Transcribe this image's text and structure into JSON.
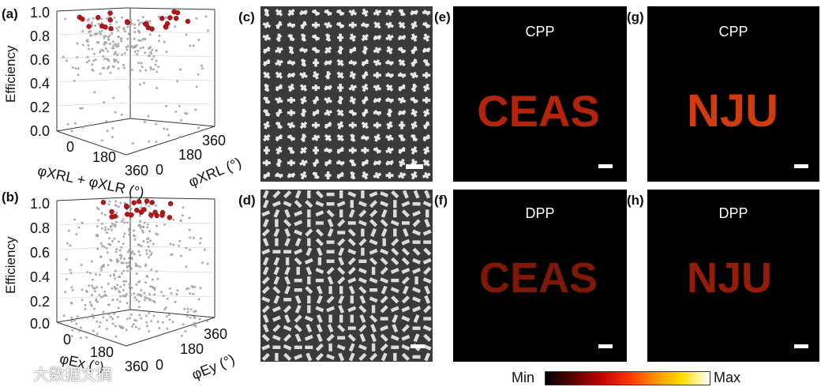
{
  "panel_labels": {
    "a": "(a)",
    "b": "(b)",
    "c": "(c)",
    "d": "(d)",
    "e": "(e)",
    "f": "(f)",
    "g": "(g)",
    "h": "(h)"
  },
  "plot_a": {
    "ylabel": "Efficiency",
    "z_ticks": [
      "1.0",
      "0.8",
      "0.6",
      "0.4",
      "0.2",
      "0.0"
    ],
    "x_ticks": [
      "0",
      "180",
      "360"
    ],
    "y_ticks": [
      "0",
      "180",
      "360"
    ],
    "xlabel": "φXRL + φXLR (°)",
    "y_axis_label": "φXRL (°)"
  },
  "plot_b": {
    "ylabel": "Efficiency",
    "z_ticks": [
      "1.0",
      "0.8",
      "0.6",
      "0.4",
      "0.2",
      "0.0"
    ],
    "x_ticks": [
      "0",
      "180",
      "360"
    ],
    "y_ticks": [
      "0",
      "180",
      "360"
    ],
    "xlabel": "φEx (°)",
    "y_axis_label": "φEy (°)"
  },
  "images": {
    "e_mode": "CPP",
    "g_mode": "CPP",
    "f_mode": "DPP",
    "h_mode": "DPP",
    "e_text": "CEAS",
    "f_text": "CEAS",
    "g_text": "NJU",
    "h_text": "NJU"
  },
  "colorbar": {
    "min_label": "Min",
    "max_label": "Max",
    "colors": [
      "#000000",
      "#5a0000",
      "#c00000",
      "#ff3000",
      "#ff9000",
      "#ffe000",
      "#ffffff"
    ]
  },
  "watermark": "大数据文摘"
}
